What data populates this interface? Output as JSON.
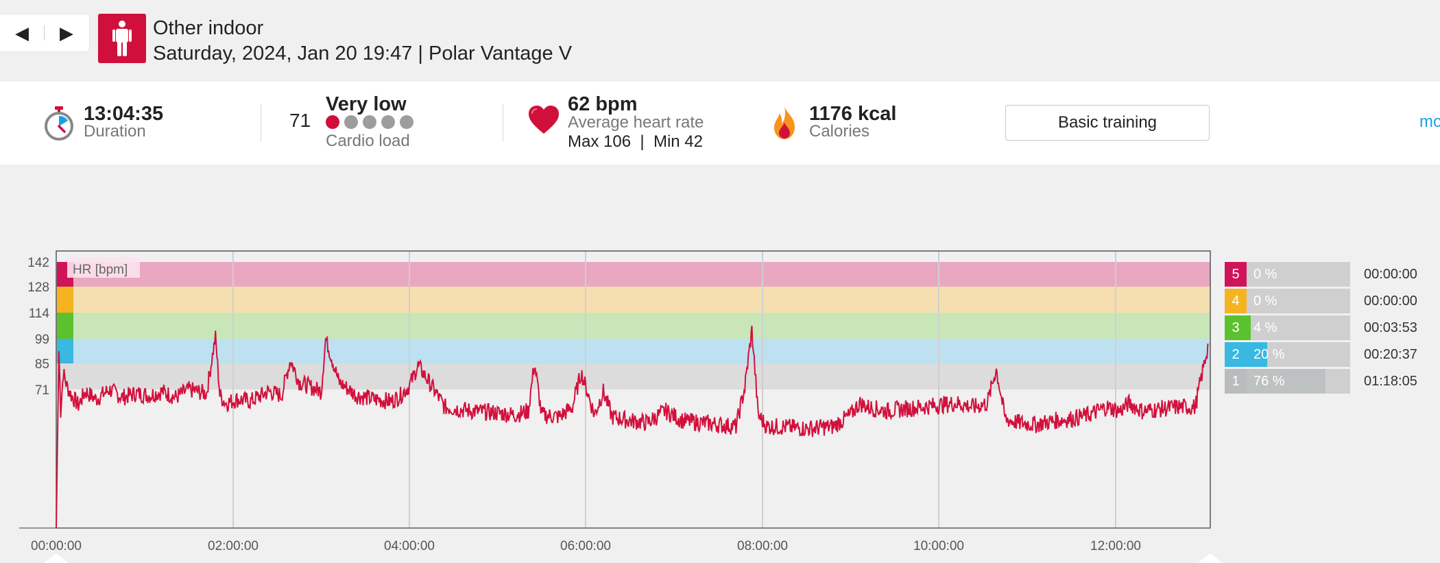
{
  "header": {
    "prev_arrow": "◀",
    "next_arrow": "▶",
    "sport_name": "Other indoor",
    "subtitle": "Saturday, 2024, Jan 20 19:47 | Polar Vantage V",
    "sport_icon": "person-standing-icon"
  },
  "summary": {
    "duration_value": "13:04:35",
    "duration_label": "Duration",
    "cardio_load_value": "71",
    "cardio_load_level": "Very low",
    "cardio_load_label": "Cardio load",
    "cardio_load_dots_filled": 1,
    "cardio_load_dots_total": 5,
    "avg_hr_value": "62 bpm",
    "avg_hr_label": "Average heart rate",
    "hr_max_min": "Max 106  |  Min 42",
    "calories_value": "1176 kcal",
    "calories_label": "Calories",
    "training_benefit_button": "Basic training",
    "more_link": "mo"
  },
  "zones": [
    {
      "zone": "5",
      "percent_text": "0 %",
      "percent": 0,
      "time": "00:00:00",
      "color": "#d0145a"
    },
    {
      "zone": "4",
      "percent_text": "0 %",
      "percent": 0,
      "time": "00:00:00",
      "color": "#f5b322"
    },
    {
      "zone": "3",
      "percent_text": "4 %",
      "percent": 4,
      "time": "00:03:53",
      "color": "#5cc12e"
    },
    {
      "zone": "2",
      "percent_text": "20 %",
      "percent": 20,
      "time": "00:20:37",
      "color": "#39b8e2"
    },
    {
      "zone": "1",
      "percent_text": "76 %",
      "percent": 76,
      "time": "01:18:05",
      "color": "#b8bcbc"
    }
  ],
  "chart_data": {
    "type": "line",
    "series_label": "HR [bpm]",
    "y_ticks": [
      "142",
      "128",
      "114",
      "99",
      "85",
      "71"
    ],
    "x_ticks": [
      "00:00:00",
      "02:00:00",
      "04:00:00",
      "06:00:00",
      "08:00:00",
      "10:00:00",
      "12:00:00"
    ],
    "zone_bands": [
      {
        "zone": 5,
        "from": 128,
        "to": 142,
        "color": "#eaa7c1"
      },
      {
        "zone": 4,
        "from": 114,
        "to": 128,
        "color": "#f5dfb0"
      },
      {
        "zone": 3,
        "from": 99,
        "to": 114,
        "color": "#c8e6b8"
      },
      {
        "zone": 2,
        "from": 85,
        "to": 99,
        "color": "#bde1f0"
      },
      {
        "zone": 1,
        "from": 71,
        "to": 85,
        "color": "#dcdcdc"
      }
    ],
    "line_color": "#d2103c",
    "x_unit": "hours",
    "x_max": 13.08,
    "y_min": 0,
    "y_max": 142,
    "series": [
      {
        "name": "HR [bpm]",
        "x": [
          0.0,
          0.03,
          0.05,
          0.08,
          0.12,
          0.17,
          0.25,
          0.33,
          0.45,
          0.6,
          0.75,
          0.9,
          1.05,
          1.2,
          1.35,
          1.5,
          1.7,
          1.8,
          1.85,
          1.92,
          2.05,
          2.2,
          2.4,
          2.55,
          2.65,
          2.75,
          2.9,
          3.0,
          3.05,
          3.2,
          3.4,
          3.6,
          3.8,
          3.9,
          4.0,
          4.1,
          4.4,
          4.7,
          5.0,
          5.2,
          5.35,
          5.42,
          5.5,
          5.7,
          5.85,
          5.95,
          6.1,
          6.2,
          6.3,
          6.5,
          6.7,
          6.9,
          7.1,
          7.3,
          7.5,
          7.7,
          7.8,
          7.88,
          7.95,
          8.05,
          8.2,
          8.5,
          8.8,
          9.0,
          9.1,
          9.2,
          9.4,
          9.6,
          9.8,
          10.0,
          10.2,
          10.4,
          10.55,
          10.65,
          10.75,
          10.9,
          11.1,
          11.3,
          11.5,
          11.7,
          11.9,
          12.05,
          12.15,
          12.3,
          12.5,
          12.7,
          12.9,
          13.05
        ],
        "y": [
          0,
          92,
          60,
          80,
          73,
          68,
          63,
          70,
          66,
          71,
          67,
          69,
          68,
          70,
          67,
          71,
          69,
          100,
          68,
          64,
          66,
          65,
          70,
          68,
          87,
          75,
          72,
          70,
          99,
          75,
          68,
          66,
          65,
          68,
          73,
          84,
          62,
          60,
          59,
          58,
          60,
          85,
          58,
          57,
          62,
          80,
          58,
          70,
          57,
          55,
          54,
          60,
          55,
          54,
          53,
          52,
          72,
          104,
          58,
          52,
          52,
          51,
          52,
          58,
          64,
          62,
          60,
          61,
          62,
          63,
          64,
          62,
          64,
          82,
          56,
          54,
          53,
          55,
          56,
          58,
          62,
          60,
          64,
          60,
          61,
          62,
          62,
          96
        ]
      }
    ]
  }
}
